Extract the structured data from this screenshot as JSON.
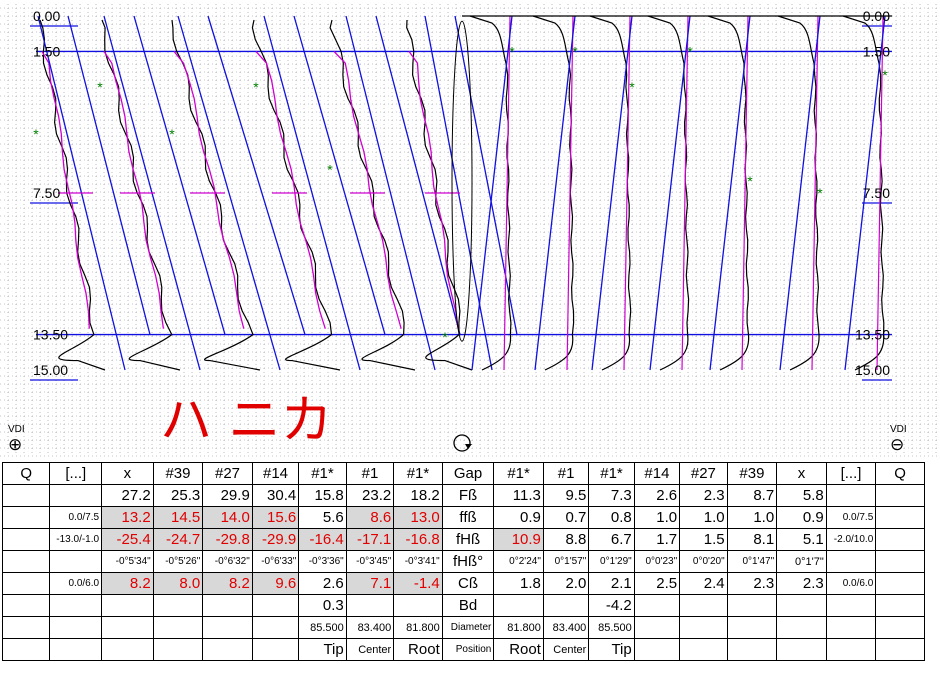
{
  "chart_data": {
    "type": "line",
    "depth_ticks_left": [
      "0.00",
      "1.50",
      "7.50",
      "13.50",
      "15.00"
    ],
    "depth_ticks_right": [
      "0.00",
      "1.50",
      "7.50",
      "13.50",
      "15.00"
    ],
    "depth_range": [
      0,
      15
    ],
    "grid": true,
    "left_marker": {
      "label": "VDI",
      "symbol": "⊕"
    },
    "right_marker": {
      "label": "VDI",
      "symbol": "⊖"
    },
    "annotation_text": "ハ ニカ",
    "columns": [
      "#39",
      "#27",
      "#14",
      "#1*",
      "#1",
      "#1*",
      "#1*",
      "#1",
      "#1*",
      "#14",
      "#27",
      "#39"
    ],
    "colors": {
      "curve": "#000000",
      "line": "#1010e0",
      "fit": "#d000d0",
      "marker": "#008000",
      "annotation": "#e00000",
      "grid": "#9090a0"
    }
  },
  "table": {
    "rows": [
      [
        {
          "t": "Q"
        },
        {
          "t": "[...]"
        },
        {
          "t": "x"
        },
        {
          "t": "#39"
        },
        {
          "t": "#27"
        },
        {
          "t": "#14"
        },
        {
          "t": "#1*"
        },
        {
          "t": "#1"
        },
        {
          "t": "#1*"
        },
        {
          "t": "Gap"
        },
        {
          "t": "#1*"
        },
        {
          "t": "#1"
        },
        {
          "t": "#1*"
        },
        {
          "t": "#14"
        },
        {
          "t": "#27"
        },
        {
          "t": "#39"
        },
        {
          "t": "x"
        },
        {
          "t": "[...]"
        },
        {
          "t": "Q"
        }
      ],
      [
        {
          "t": ""
        },
        {
          "t": ""
        },
        {
          "t": "27.2"
        },
        {
          "t": "25.3"
        },
        {
          "t": "29.9"
        },
        {
          "t": "30.4"
        },
        {
          "t": "15.8"
        },
        {
          "t": "23.2"
        },
        {
          "t": "18.2"
        },
        {
          "t": "Fß",
          "c": 1
        },
        {
          "t": "11.3"
        },
        {
          "t": "9.5"
        },
        {
          "t": "7.3"
        },
        {
          "t": "2.6"
        },
        {
          "t": "2.3"
        },
        {
          "t": "8.7"
        },
        {
          "t": "5.8"
        },
        {
          "t": ""
        },
        {
          "t": ""
        }
      ],
      [
        {
          "t": ""
        },
        {
          "t": "0.0/7.5",
          "s": 1
        },
        {
          "t": "13.2",
          "r": 1,
          "g": 1
        },
        {
          "t": "14.5",
          "r": 1,
          "g": 1
        },
        {
          "t": "14.0",
          "r": 1,
          "g": 1
        },
        {
          "t": "15.6",
          "r": 1,
          "g": 1
        },
        {
          "t": "5.6"
        },
        {
          "t": "8.6",
          "r": 1,
          "g": 1
        },
        {
          "t": "13.0",
          "r": 1,
          "g": 1
        },
        {
          "t": "ffß",
          "c": 1
        },
        {
          "t": "0.9"
        },
        {
          "t": "0.7"
        },
        {
          "t": "0.8"
        },
        {
          "t": "1.0"
        },
        {
          "t": "1.0"
        },
        {
          "t": "1.0"
        },
        {
          "t": "0.9"
        },
        {
          "t": "0.0/7.5",
          "s": 1
        },
        {
          "t": ""
        }
      ],
      [
        {
          "t": ""
        },
        {
          "t": "-13.0/-1.0",
          "s": 1
        },
        {
          "t": "-25.4",
          "r": 1,
          "g": 1
        },
        {
          "t": "-24.7",
          "r": 1,
          "g": 1
        },
        {
          "t": "-29.8",
          "r": 1,
          "g": 1
        },
        {
          "t": "-29.9",
          "r": 1,
          "g": 1
        },
        {
          "t": "-16.4",
          "r": 1,
          "g": 1
        },
        {
          "t": "-17.1",
          "r": 1,
          "g": 1
        },
        {
          "t": "-16.8",
          "r": 1,
          "g": 1
        },
        {
          "t": "fHß",
          "c": 1
        },
        {
          "t": "10.9",
          "r": 1,
          "g": 1
        },
        {
          "t": "8.8"
        },
        {
          "t": "6.7"
        },
        {
          "t": "1.7"
        },
        {
          "t": "1.5"
        },
        {
          "t": "8.1"
        },
        {
          "t": "5.1"
        },
        {
          "t": "-2.0/10.0",
          "s": 1
        },
        {
          "t": ""
        }
      ],
      [
        {
          "t": ""
        },
        {
          "t": ""
        },
        {
          "t": "-0°5'34\"",
          "s": 1
        },
        {
          "t": "-0°5'26\"",
          "s": 1
        },
        {
          "t": "-0°6'32\"",
          "s": 1
        },
        {
          "t": "-0°6'33\"",
          "s": 1
        },
        {
          "t": "-0°3'36\"",
          "s": 1
        },
        {
          "t": "-0°3'45\"",
          "s": 1
        },
        {
          "t": "-0°3'41\"",
          "s": 1
        },
        {
          "t": "fHß°",
          "c": 1
        },
        {
          "t": "0°2'24\"",
          "s": 1
        },
        {
          "t": "0°1'57\"",
          "s": 1
        },
        {
          "t": "0°1'29\"",
          "s": 1
        },
        {
          "t": "0°0'23\"",
          "s": 1
        },
        {
          "t": "0°0'20\"",
          "s": 1
        },
        {
          "t": "0°1'47\"",
          "s": 1
        },
        {
          "t": "0°1'7\"",
          "xs": 1
        },
        {
          "t": ""
        },
        {
          "t": ""
        }
      ],
      [
        {
          "t": ""
        },
        {
          "t": "0.0/6.0",
          "s": 1
        },
        {
          "t": "8.2",
          "r": 1,
          "g": 1
        },
        {
          "t": "8.0",
          "r": 1,
          "g": 1
        },
        {
          "t": "8.2",
          "r": 1,
          "g": 1
        },
        {
          "t": "9.6",
          "r": 1,
          "g": 1
        },
        {
          "t": "2.6"
        },
        {
          "t": "7.1",
          "r": 1,
          "g": 1
        },
        {
          "t": "-1.4",
          "r": 1,
          "g": 1
        },
        {
          "t": "Cß",
          "c": 1
        },
        {
          "t": "1.8"
        },
        {
          "t": "2.0"
        },
        {
          "t": "2.1"
        },
        {
          "t": "2.5"
        },
        {
          "t": "2.4"
        },
        {
          "t": "2.3"
        },
        {
          "t": "2.3"
        },
        {
          "t": "0.0/6.0",
          "s": 1
        },
        {
          "t": ""
        }
      ],
      [
        {
          "t": ""
        },
        {
          "t": ""
        },
        {
          "t": ""
        },
        {
          "t": ""
        },
        {
          "t": ""
        },
        {
          "t": ""
        },
        {
          "t": "0.3"
        },
        {
          "t": ""
        },
        {
          "t": ""
        },
        {
          "t": "Bd",
          "c": 1
        },
        {
          "t": ""
        },
        {
          "t": ""
        },
        {
          "t": "-4.2"
        },
        {
          "t": ""
        },
        {
          "t": ""
        },
        {
          "t": ""
        },
        {
          "t": ""
        },
        {
          "t": ""
        },
        {
          "t": ""
        }
      ],
      [
        {
          "t": ""
        },
        {
          "t": ""
        },
        {
          "t": ""
        },
        {
          "t": ""
        },
        {
          "t": ""
        },
        {
          "t": ""
        },
        {
          "t": "85.500",
          "xs": 1
        },
        {
          "t": "83.400",
          "xs": 1
        },
        {
          "t": "81.800",
          "xs": 1
        },
        {
          "t": "Diameter",
          "s": 1
        },
        {
          "t": "81.800",
          "xs": 1
        },
        {
          "t": "83.400",
          "xs": 1
        },
        {
          "t": "85.500",
          "xs": 1
        },
        {
          "t": ""
        },
        {
          "t": ""
        },
        {
          "t": ""
        },
        {
          "t": ""
        },
        {
          "t": ""
        },
        {
          "t": ""
        }
      ],
      [
        {
          "t": ""
        },
        {
          "t": ""
        },
        {
          "t": ""
        },
        {
          "t": ""
        },
        {
          "t": ""
        },
        {
          "t": ""
        },
        {
          "t": "Tip"
        },
        {
          "t": "Center",
          "xs": 1
        },
        {
          "t": "Root"
        },
        {
          "t": "Position",
          "s": 1
        },
        {
          "t": "Root"
        },
        {
          "t": "Center",
          "xs": 1
        },
        {
          "t": "Tip"
        },
        {
          "t": ""
        },
        {
          "t": ""
        },
        {
          "t": ""
        },
        {
          "t": ""
        },
        {
          "t": ""
        },
        {
          "t": ""
        }
      ]
    ]
  }
}
